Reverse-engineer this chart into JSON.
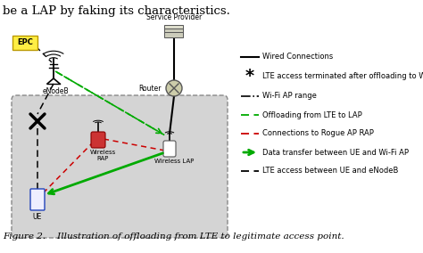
{
  "title_top": "be a LAP by faking its characteristics.",
  "caption": "Figure 2.    Illustration of offloading from LTE to legitimate access point.",
  "legend_items": [
    {
      "label": "Wired Connections",
      "style": "solid",
      "color": "#000000"
    },
    {
      "label": "LTE access terminated after offloading to Wi-Fi",
      "style": "xstar",
      "color": "#000000"
    },
    {
      "label": "Wi-Fi AP range",
      "style": "dashdot",
      "color": "#000000"
    },
    {
      "label": "Offloading from LTE to LAP",
      "style": "dashed",
      "color": "#00aa00"
    },
    {
      "label": "Connections to Rogue AP RAP",
      "style": "dashed",
      "color": "#cc0000"
    },
    {
      "label": "Data transfer between UE and Wi-Fi AP",
      "style": "arrow",
      "color": "#00aa00"
    },
    {
      "label": "LTE access between UE and eNodeB",
      "style": "dotted",
      "color": "#000000"
    }
  ],
  "bg_color": "#ffffff",
  "box_facecolor": "#d4d4d4",
  "box_edgecolor": "#888888",
  "epc_color": "#ffee44",
  "epc_edge": "#bb9900",
  "rap_color": "#cc3333",
  "lap_color": "#ffffff",
  "ue_edge": "#2244bb"
}
